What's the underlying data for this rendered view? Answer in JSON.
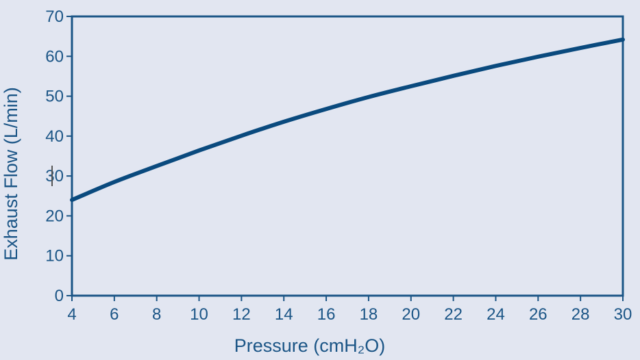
{
  "colors": {
    "background": "#e2e6f1",
    "axis": "#1b5586",
    "text": "#1b5586",
    "line": "#0a4a7e",
    "cursor": "#555555"
  },
  "chart_data": {
    "type": "line",
    "title": "",
    "xlabel": "Pressure (cmH₂O)",
    "ylabel": "Exhaust Flow (L/min)",
    "xlim": [
      4,
      30
    ],
    "ylim": [
      0,
      70
    ],
    "x_ticks": [
      4,
      6,
      8,
      10,
      12,
      14,
      16,
      18,
      20,
      22,
      24,
      26,
      28,
      30
    ],
    "y_ticks": [
      0,
      10,
      20,
      30,
      40,
      50,
      60,
      70
    ],
    "grid": false,
    "legend": "none",
    "series": [
      {
        "x": [
          4,
          6,
          8,
          10,
          12,
          14,
          16,
          18,
          20,
          22,
          24,
          26,
          28,
          30
        ],
        "y": [
          24,
          28.5,
          32.5,
          36.4,
          40.1,
          43.6,
          46.8,
          49.8,
          52.5,
          55.1,
          57.6,
          59.9,
          62.1,
          64.2
        ]
      }
    ]
  }
}
